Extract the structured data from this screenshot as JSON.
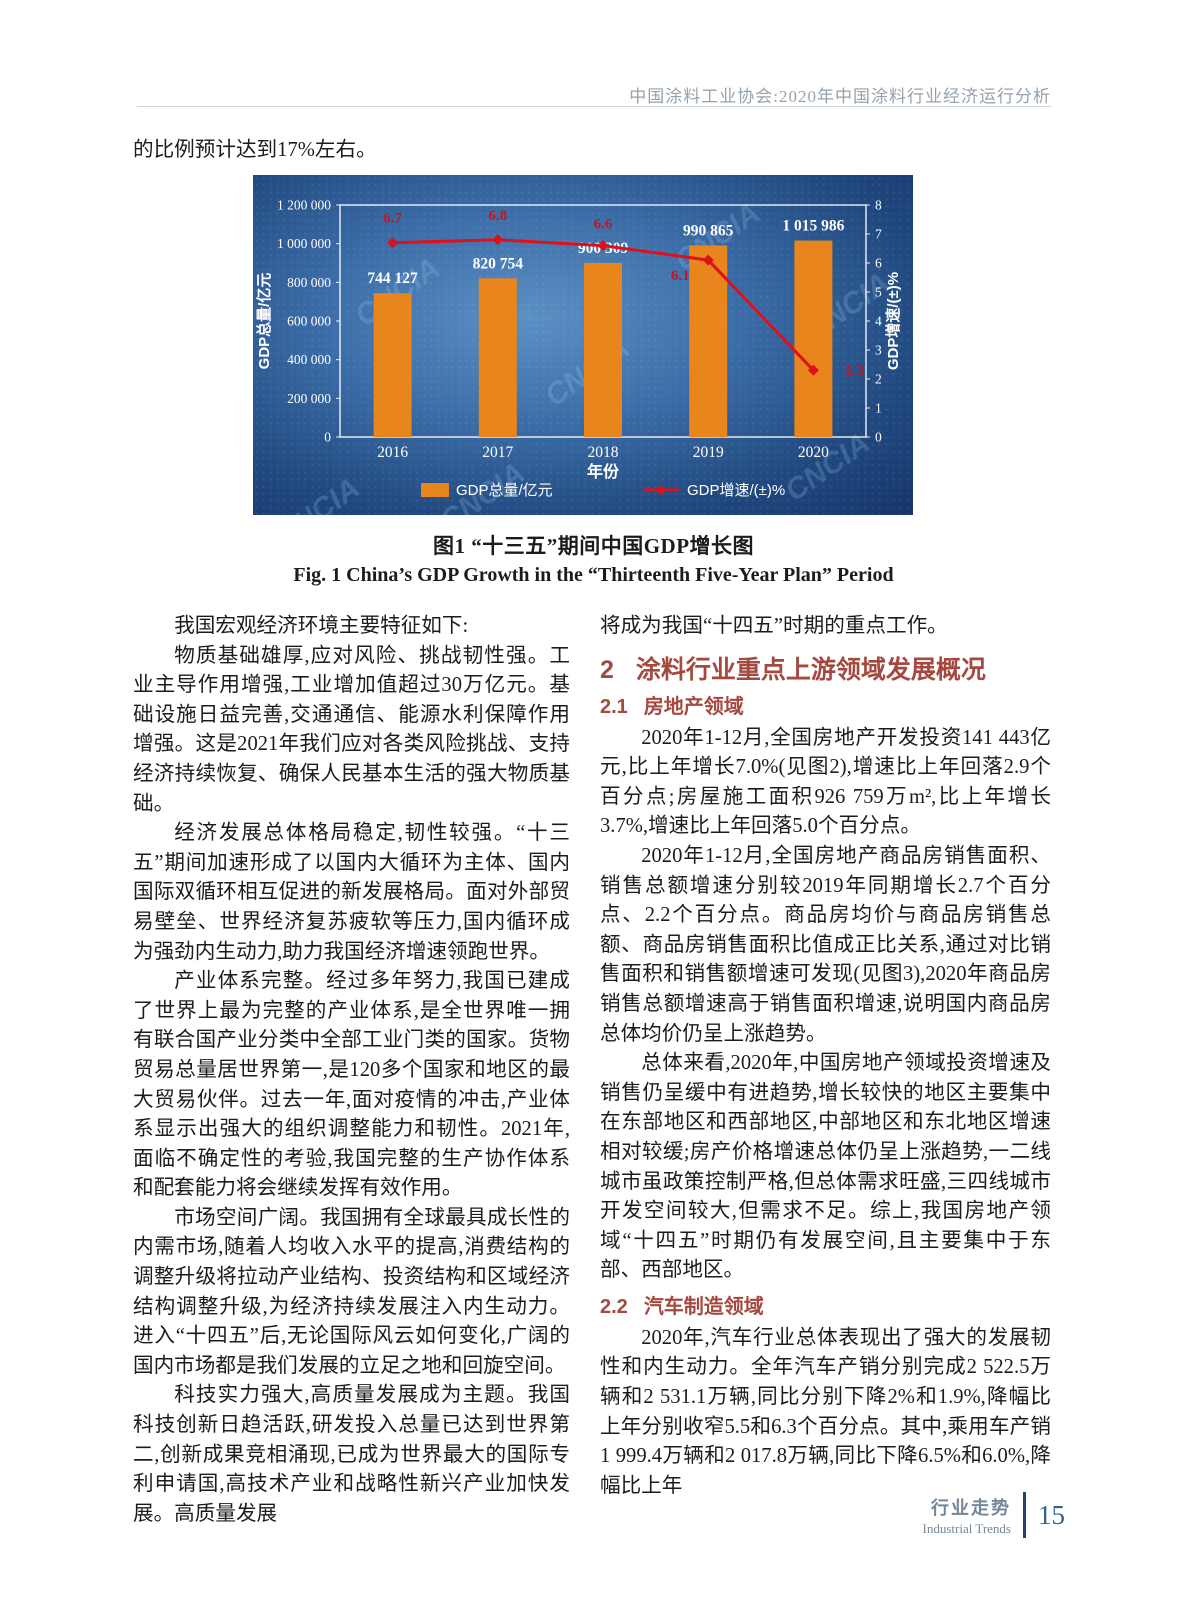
{
  "header": {
    "journal_line": "中国涂料工业协会:2020年中国涂料行业经济运行分析"
  },
  "intro_line": "的比例预计达到17%左右。",
  "figure": {
    "caption_zh": "图1  “十三五”期间中国GDP增长图",
    "caption_en": "Fig. 1  China’s GDP Growth in the “Thirteenth Five-Year Plan” Period"
  },
  "chart_data": {
    "type": "bar+line",
    "categories": [
      "2016",
      "2017",
      "2018",
      "2019",
      "2020"
    ],
    "series": [
      {
        "name": "GDP总量/亿元",
        "type": "bar",
        "axis": "left",
        "color": "#e8851c",
        "values": [
          744127,
          820754,
          900309,
          990865,
          1015986
        ],
        "labels": [
          "744 127",
          "820 754",
          "900 309",
          "990 865",
          "1 015 986"
        ]
      },
      {
        "name": "GDP增速/(±)%",
        "type": "line",
        "axis": "right",
        "color": "#df1019",
        "values": [
          6.7,
          6.8,
          6.6,
          6.1,
          2.3
        ],
        "labels": [
          "6.7",
          "6.8",
          "6.6",
          "6.1",
          "2.3"
        ]
      }
    ],
    "xlabel": "年份",
    "ylabel_left": "GDP总量/亿元",
    "ylabel_right": "GDP增速/(±)%",
    "ylim_left": [
      0,
      1200000
    ],
    "ylim_right": [
      0,
      8
    ],
    "yticks_left": [
      "0",
      "200 000",
      "400 000",
      "600 000",
      "800 000",
      "1 000 000",
      "1 200 000"
    ],
    "yticks_right": [
      "0",
      "1",
      "2",
      "3",
      "4",
      "5",
      "6",
      "7",
      "8"
    ],
    "grid": false,
    "legend_position": "bottom",
    "watermark": "CNCIA"
  },
  "left_column": {
    "blocks": [
      {
        "kind": "p",
        "indent": true,
        "text": "我国宏观经济环境主要特征如下:"
      },
      {
        "kind": "p",
        "indent": true,
        "text": "物质基础雄厚,应对风险、挑战韧性强。工业主导作用增强,工业增加值超过30万亿元。基础设施日益完善,交通通信、能源水利保障作用增强。这是2021年我们应对各类风险挑战、支持经济持续恢复、确保人民基本生活的强大物质基础。"
      },
      {
        "kind": "p",
        "indent": true,
        "text": "经济发展总体格局稳定,韧性较强。“十三五”期间加速形成了以国内大循环为主体、国内国际双循环相互促进的新发展格局。面对外部贸易壁垒、世界经济复苏疲软等压力,国内循环成为强劲内生动力,助力我国经济增速领跑世界。"
      },
      {
        "kind": "p",
        "indent": true,
        "text": "产业体系完整。经过多年努力,我国已建成了世界上最为完整的产业体系,是全世界唯一拥有联合国产业分类中全部工业门类的国家。货物贸易总量居世界第一,是120多个国家和地区的最大贸易伙伴。过去一年,面对疫情的冲击,产业体系显示出强大的组织调整能力和韧性。2021年,面临不确定性的考验,我国完整的生产协作体系和配套能力将会继续发挥有效作用。"
      },
      {
        "kind": "p",
        "indent": true,
        "text": "市场空间广阔。我国拥有全球最具成长性的内需市场,随着人均收入水平的提高,消费结构的调整升级将拉动产业结构、投资结构和区域经济结构调整升级,为经济持续发展注入内生动力。进入“十四五”后,无论国际风云如何变化,广阔的国内市场都是我们发展的立足之地和回旋空间。"
      },
      {
        "kind": "p",
        "indent": true,
        "text": "科技实力强大,高质量发展成为主题。我国科技创新日趋活跃,研发投入总量已达到世界第二,创新成果竞相涌现,已成为世界最大的国际专利申请国,高技术产业和战略性新兴产业加快发展。高质量发展"
      }
    ]
  },
  "right_column": {
    "blocks": [
      {
        "kind": "p",
        "indent": false,
        "text": "将成为我国“十四五”时期的重点工作。"
      },
      {
        "kind": "h2",
        "num": "2",
        "text": "涂料行业重点上游领域发展概况"
      },
      {
        "kind": "h3",
        "num": "2.1",
        "text": "房地产领域"
      },
      {
        "kind": "p",
        "indent": true,
        "text": "2020年1-12月,全国房地产开发投资141 443亿元,比上年增长7.0%(见图2),增速比上年回落2.9个百分点;房屋施工面积926 759万m²,比上年增长3.7%,增速比上年回落5.0个百分点。"
      },
      {
        "kind": "p",
        "indent": true,
        "text": "2020年1-12月,全国房地产商品房销售面积、销售总额增速分别较2019年同期增长2.7个百分点、2.2个百分点。商品房均价与商品房销售总额、商品房销售面积比值成正比关系,通过对比销售面积和销售额增速可发现(见图3),2020年商品房销售总额增速高于销售面积增速,说明国内商品房总体均价仍呈上涨趋势。"
      },
      {
        "kind": "p",
        "indent": true,
        "text": "总体来看,2020年,中国房地产领域投资增速及销售仍呈缓中有进趋势,增长较快的地区主要集中在东部地区和西部地区,中部地区和东北地区增速相对较缓;房产价格增速总体仍呈上涨趋势,一二线城市虽政策控制严格,但总体需求旺盛,三四线城市开发空间较大,但需求不足。综上,我国房地产领域“十四五”时期仍有发展空间,且主要集中于东部、西部地区。"
      },
      {
        "kind": "h3",
        "num": "2.2",
        "text": "汽车制造领域"
      },
      {
        "kind": "p",
        "indent": true,
        "text": "2020年,汽车行业总体表现出了强大的发展韧性和内生动力。全年汽车产销分别完成2 522.5万辆和2 531.1万辆,同比分别下降2%和1.9%,降幅比上年分别收窄5.5和6.3个百分点。其中,乘用车产销1 999.4万辆和2 017.8万辆,同比下降6.5%和6.0%,降幅比上年"
      }
    ]
  },
  "footer": {
    "section_zh": "行业走势",
    "section_en": "Industrial Trends",
    "page_number": "15"
  }
}
